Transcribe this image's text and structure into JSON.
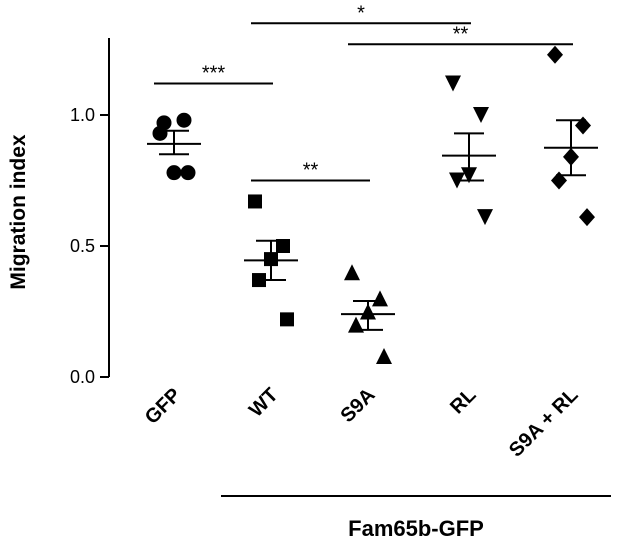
{
  "chart_data": {
    "type": "scatter",
    "ylabel": "Migration index",
    "ylim": [
      0,
      1.25
    ],
    "yticks": [
      0.0,
      0.5,
      1.0
    ],
    "ytick_labels": [
      "0.0",
      "0.5",
      "1.0"
    ],
    "categories": [
      "GFP",
      "WT",
      "S9A",
      "RL",
      "S9A + RL"
    ],
    "groups": [
      {
        "category": "GFP",
        "marker": "circle",
        "points": [
          0.97,
          0.98,
          0.93,
          0.78,
          0.78
        ],
        "mean": 0.89,
        "sem_low": 0.85,
        "sem_high": 0.94
      },
      {
        "category": "WT",
        "marker": "square",
        "points": [
          0.67,
          0.5,
          0.45,
          0.37,
          0.22
        ],
        "mean": 0.445,
        "sem_low": 0.37,
        "sem_high": 0.52
      },
      {
        "category": "S9A",
        "marker": "triangle-up",
        "points": [
          0.4,
          0.3,
          0.25,
          0.2,
          0.08
        ],
        "mean": 0.24,
        "sem_low": 0.18,
        "sem_high": 0.29
      },
      {
        "category": "RL",
        "marker": "triangle-down",
        "points": [
          1.12,
          1.0,
          0.77,
          0.75,
          0.61
        ],
        "mean": 0.845,
        "sem_low": 0.75,
        "sem_high": 0.93
      },
      {
        "category": "S9A + RL",
        "marker": "diamond",
        "points": [
          1.23,
          0.96,
          0.84,
          0.75,
          0.61
        ],
        "mean": 0.875,
        "sem_low": 0.77,
        "sem_high": 0.98
      }
    ],
    "significance": [
      {
        "from": "GFP",
        "to": "WT",
        "y": 1.12,
        "label": "***"
      },
      {
        "from": "WT",
        "to": "S9A",
        "y": 0.75,
        "label": "**"
      },
      {
        "from": "WT",
        "to": "RL",
        "y": 1.35,
        "label": "*"
      },
      {
        "from": "S9A",
        "to": "S9A + RL",
        "y": 1.27,
        "label": "**"
      }
    ],
    "group_bracket": {
      "from": "WT",
      "to": "S9A + RL",
      "label": "Fam65b-GFP"
    }
  }
}
